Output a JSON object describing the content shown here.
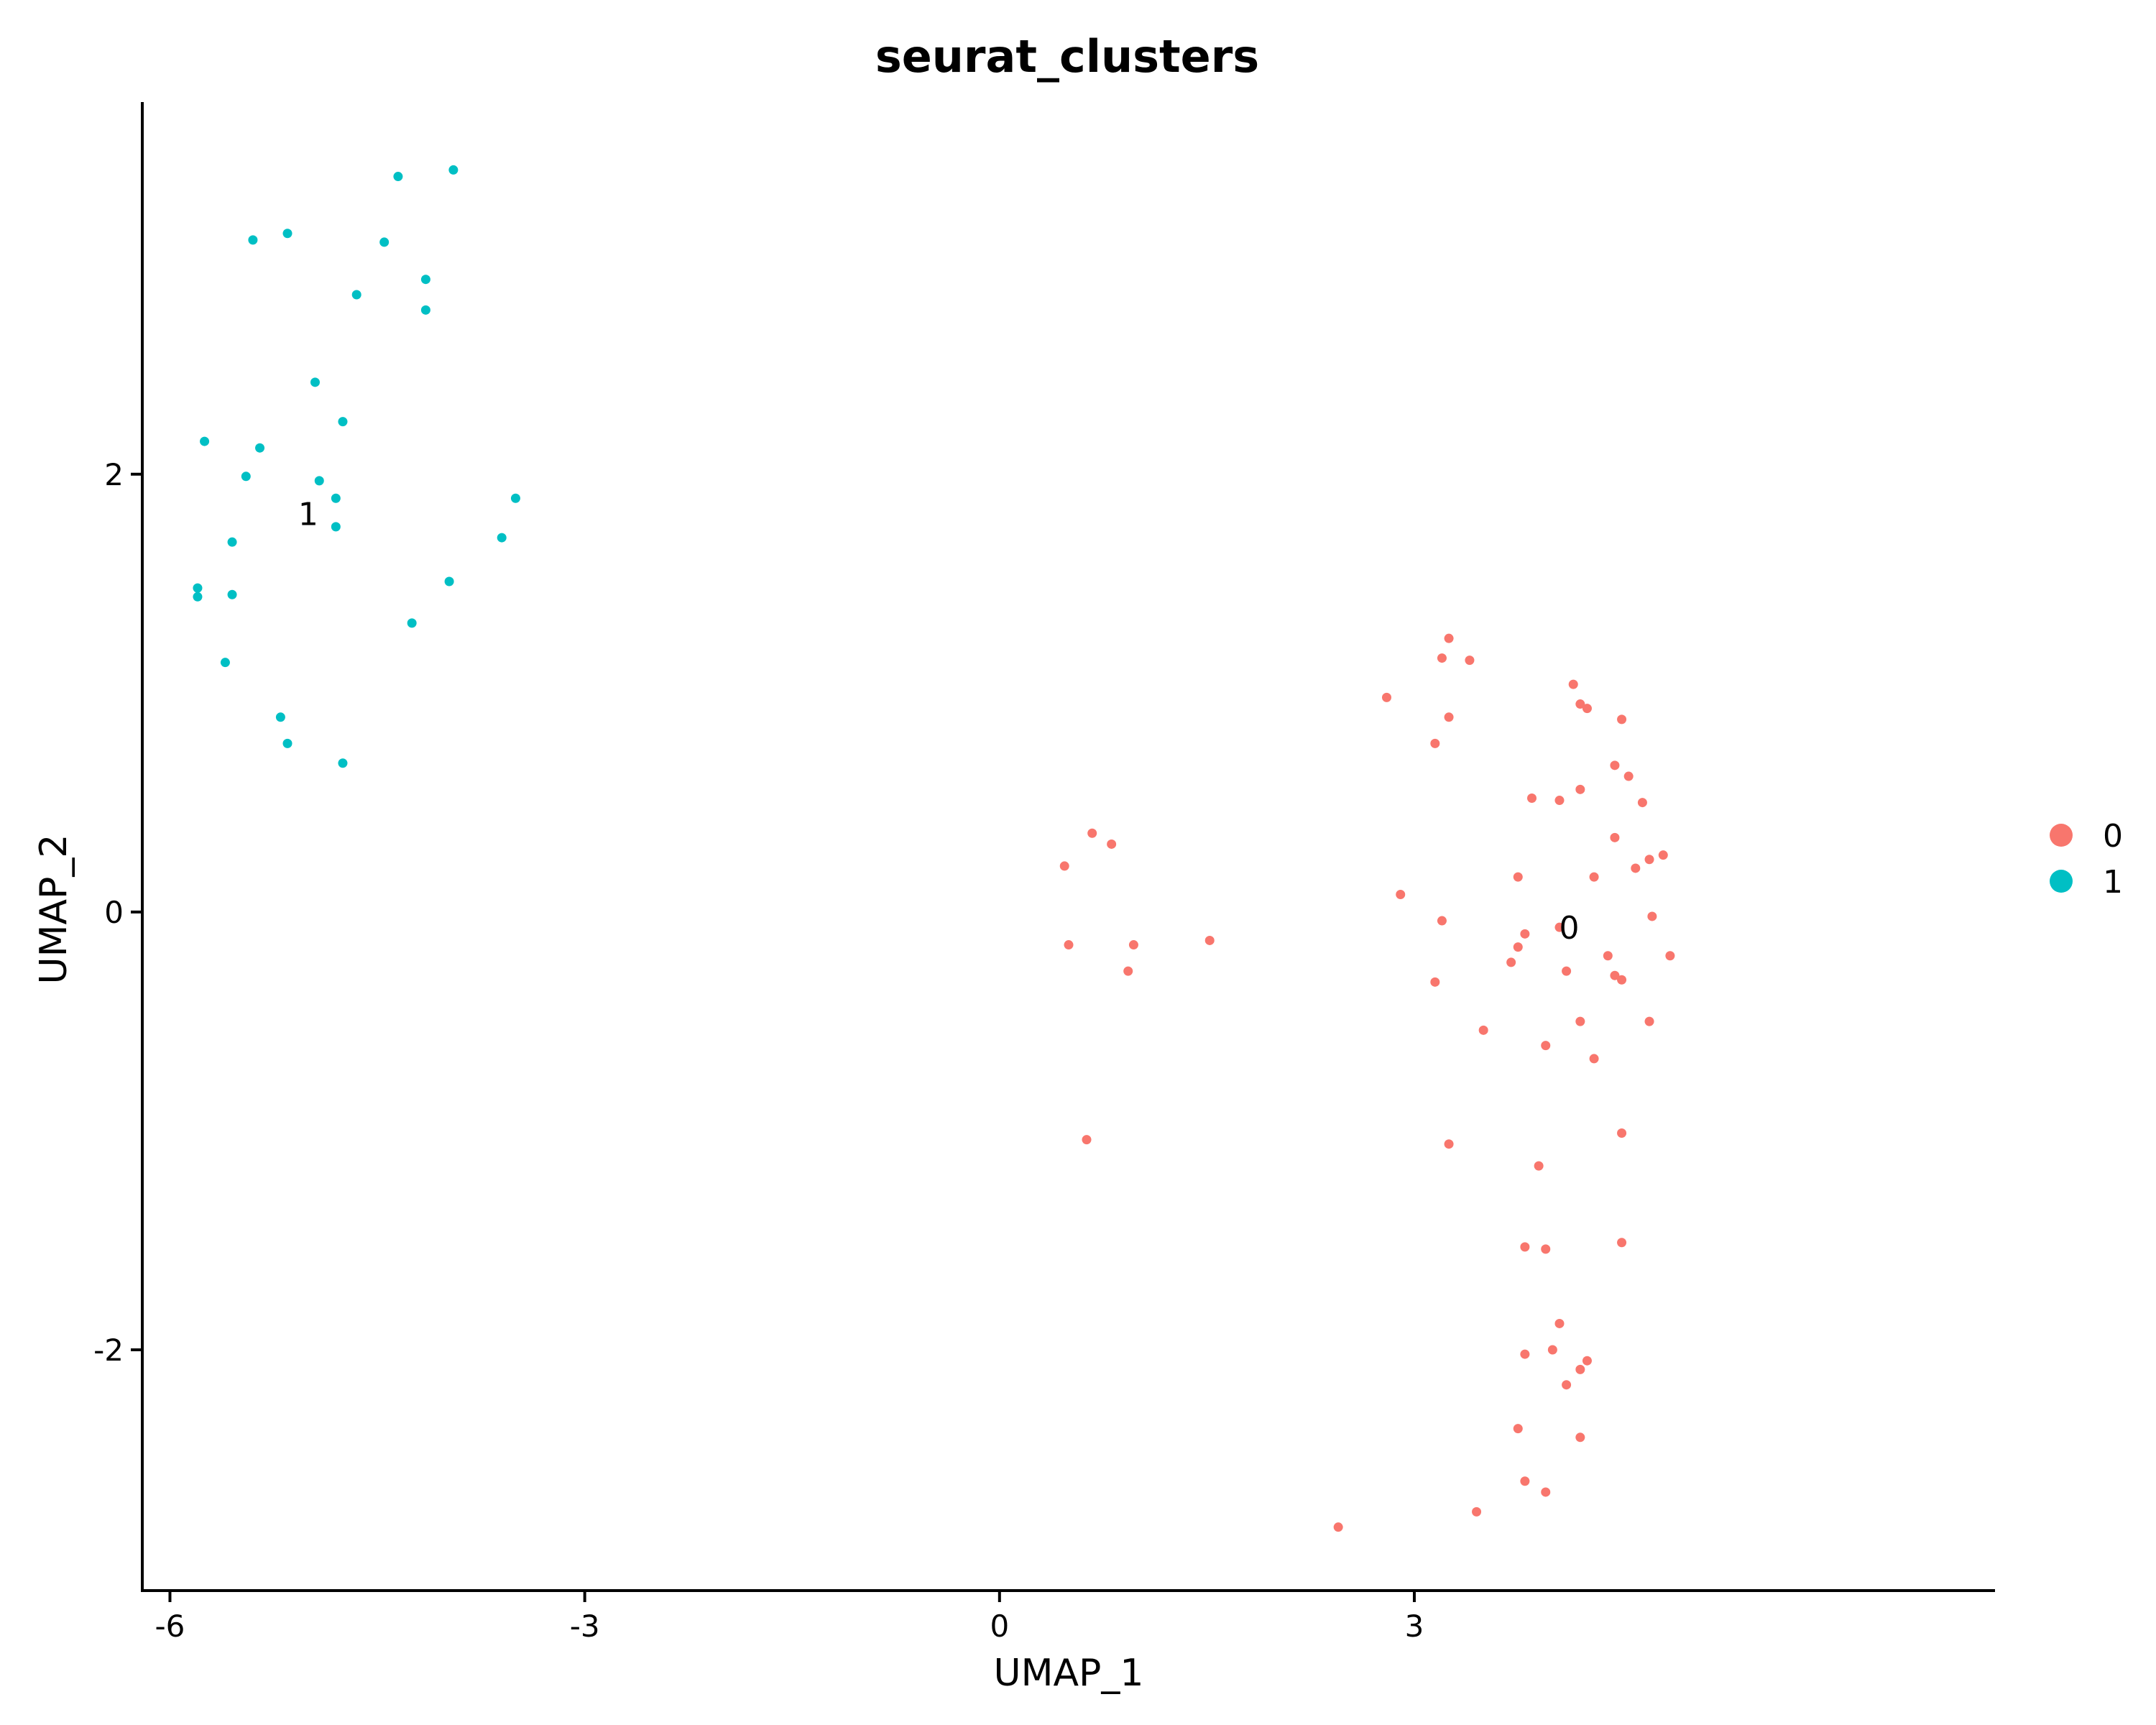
{
  "chart_data": {
    "type": "scatter",
    "title": "seurat_clusters",
    "xlabel": "UMAP_1",
    "ylabel": "UMAP_2",
    "xlim": [
      -6.2,
      7.2
    ],
    "ylim": [
      -3.1,
      3.7
    ],
    "xticks": [
      -6,
      -3,
      0,
      3
    ],
    "yticks": [
      -2,
      0,
      2
    ],
    "grid": false,
    "legend_position": "right",
    "series": [
      {
        "name": "0",
        "color": "#F8766D",
        "label_position": [
          4.12,
          -0.07
        ],
        "points": [
          [
            2.8,
            0.98
          ],
          [
            3.25,
            1.25
          ],
          [
            3.4,
            1.15
          ],
          [
            3.2,
            1.16
          ],
          [
            3.25,
            0.89
          ],
          [
            3.15,
            0.77
          ],
          [
            4.15,
            1.04
          ],
          [
            4.2,
            0.95
          ],
          [
            4.25,
            0.93
          ],
          [
            4.5,
            0.88
          ],
          [
            4.45,
            0.67
          ],
          [
            4.55,
            0.62
          ],
          [
            4.65,
            0.5
          ],
          [
            4.2,
            0.56
          ],
          [
            4.05,
            0.51
          ],
          [
            3.85,
            0.52
          ],
          [
            4.45,
            0.34
          ],
          [
            4.8,
            0.26
          ],
          [
            4.7,
            0.24
          ],
          [
            4.6,
            0.2
          ],
          [
            3.75,
            0.16
          ],
          [
            4.3,
            0.16
          ],
          [
            2.9,
            0.08
          ],
          [
            3.2,
            -0.04
          ],
          [
            4.05,
            -0.07
          ],
          [
            3.8,
            -0.1
          ],
          [
            3.75,
            -0.16
          ],
          [
            3.7,
            -0.23
          ],
          [
            4.1,
            -0.27
          ],
          [
            4.4,
            -0.2
          ],
          [
            4.45,
            -0.29
          ],
          [
            4.5,
            -0.31
          ],
          [
            4.85,
            -0.2
          ],
          [
            4.72,
            -0.02
          ],
          [
            3.15,
            -0.32
          ],
          [
            3.5,
            -0.54
          ],
          [
            4.2,
            -0.5
          ],
          [
            3.95,
            -0.61
          ],
          [
            4.3,
            -0.67
          ],
          [
            4.7,
            -0.5
          ],
          [
            4.5,
            -1.01
          ],
          [
            3.25,
            -1.06
          ],
          [
            3.9,
            -1.16
          ],
          [
            3.8,
            -1.53
          ],
          [
            3.95,
            -1.54
          ],
          [
            4.5,
            -1.51
          ],
          [
            4.05,
            -1.88
          ],
          [
            3.8,
            -2.02
          ],
          [
            4.0,
            -2.0
          ],
          [
            4.25,
            -2.05
          ],
          [
            4.2,
            -2.09
          ],
          [
            4.1,
            -2.16
          ],
          [
            3.75,
            -2.36
          ],
          [
            4.2,
            -2.4
          ],
          [
            3.8,
            -2.6
          ],
          [
            3.95,
            -2.65
          ],
          [
            3.45,
            -2.74
          ],
          [
            2.45,
            -2.81
          ],
          [
            0.47,
            0.21
          ],
          [
            0.67,
            0.36
          ],
          [
            0.81,
            0.31
          ],
          [
            0.5,
            -0.15
          ],
          [
            0.97,
            -0.15
          ],
          [
            0.93,
            -0.27
          ],
          [
            1.52,
            -0.13
          ],
          [
            0.63,
            -1.04
          ]
        ]
      },
      {
        "name": "1",
        "color": "#00BFC4",
        "label_position": [
          -5.0,
          1.82
        ],
        "points": [
          [
            -4.35,
            3.36
          ],
          [
            -3.95,
            3.39
          ],
          [
            -5.4,
            3.07
          ],
          [
            -5.15,
            3.1
          ],
          [
            -4.45,
            3.06
          ],
          [
            -4.15,
            2.89
          ],
          [
            -4.65,
            2.82
          ],
          [
            -4.15,
            2.75
          ],
          [
            -4.95,
            2.42
          ],
          [
            -4.75,
            2.24
          ],
          [
            -5.75,
            2.15
          ],
          [
            -5.35,
            2.12
          ],
          [
            -5.45,
            1.99
          ],
          [
            -4.92,
            1.97
          ],
          [
            -4.8,
            1.89
          ],
          [
            -3.5,
            1.89
          ],
          [
            -4.8,
            1.76
          ],
          [
            -5.55,
            1.69
          ],
          [
            -3.6,
            1.71
          ],
          [
            -5.8,
            1.48
          ],
          [
            -5.8,
            1.44
          ],
          [
            -5.55,
            1.45
          ],
          [
            -3.98,
            1.51
          ],
          [
            -4.25,
            1.32
          ],
          [
            -5.6,
            1.14
          ],
          [
            -5.2,
            0.89
          ],
          [
            -5.15,
            0.77
          ],
          [
            -4.75,
            0.68
          ]
        ]
      }
    ]
  }
}
